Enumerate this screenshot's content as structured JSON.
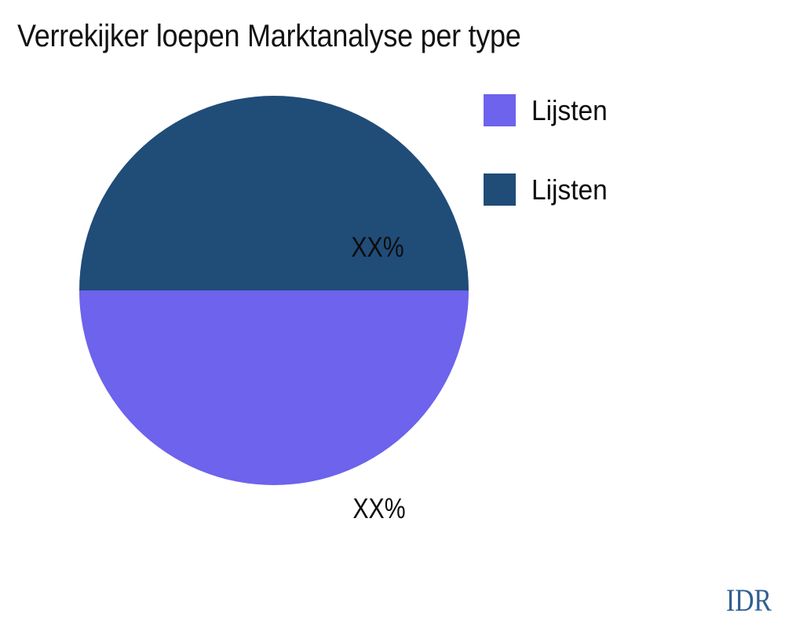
{
  "title": "Verrekijker loepen Marktanalyse per type",
  "chart_data": {
    "type": "pie",
    "title": "Verrekijker loepen Marktanalyse per type",
    "slices": [
      {
        "label": "Lijsten",
        "value": 50,
        "display_value": "XX%",
        "color": "#6D63EC",
        "position": "bottom-half"
      },
      {
        "label": "Lijsten",
        "value": 50,
        "display_value": "XX%",
        "color": "#204C78",
        "position": "top-half"
      }
    ],
    "start_angle_css_deg": 90,
    "legend_position": "right",
    "labels_inside": true,
    "label_text_color": "#0d0d0d",
    "title_color": "#121212"
  },
  "footer": {
    "currency_label": "IDR",
    "color": "#2E5F8F"
  }
}
